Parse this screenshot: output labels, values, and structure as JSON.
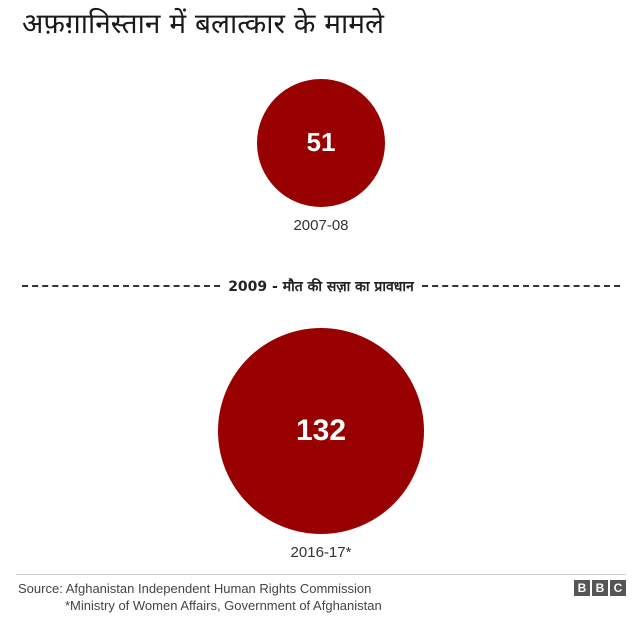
{
  "title": "अफ़ग़ानिस्तान में बलात्कार के मामले",
  "chart_data": {
    "type": "bubble",
    "title": "अफ़ग़ानिस्तान में बलात्कार के मामले",
    "categories": [
      "2007-08",
      "2016-17*"
    ],
    "values": [
      51,
      132
    ],
    "color": "#990000",
    "annotation": "2009 - मौत की सज़ा का प्रावधान"
  },
  "footer": {
    "source_line1": "Source: Afghanistan Independent Human Rights Commission",
    "source_line2": "*Ministry of Women Affairs, Government of Afghanistan",
    "logo": [
      "B",
      "B",
      "C"
    ]
  }
}
